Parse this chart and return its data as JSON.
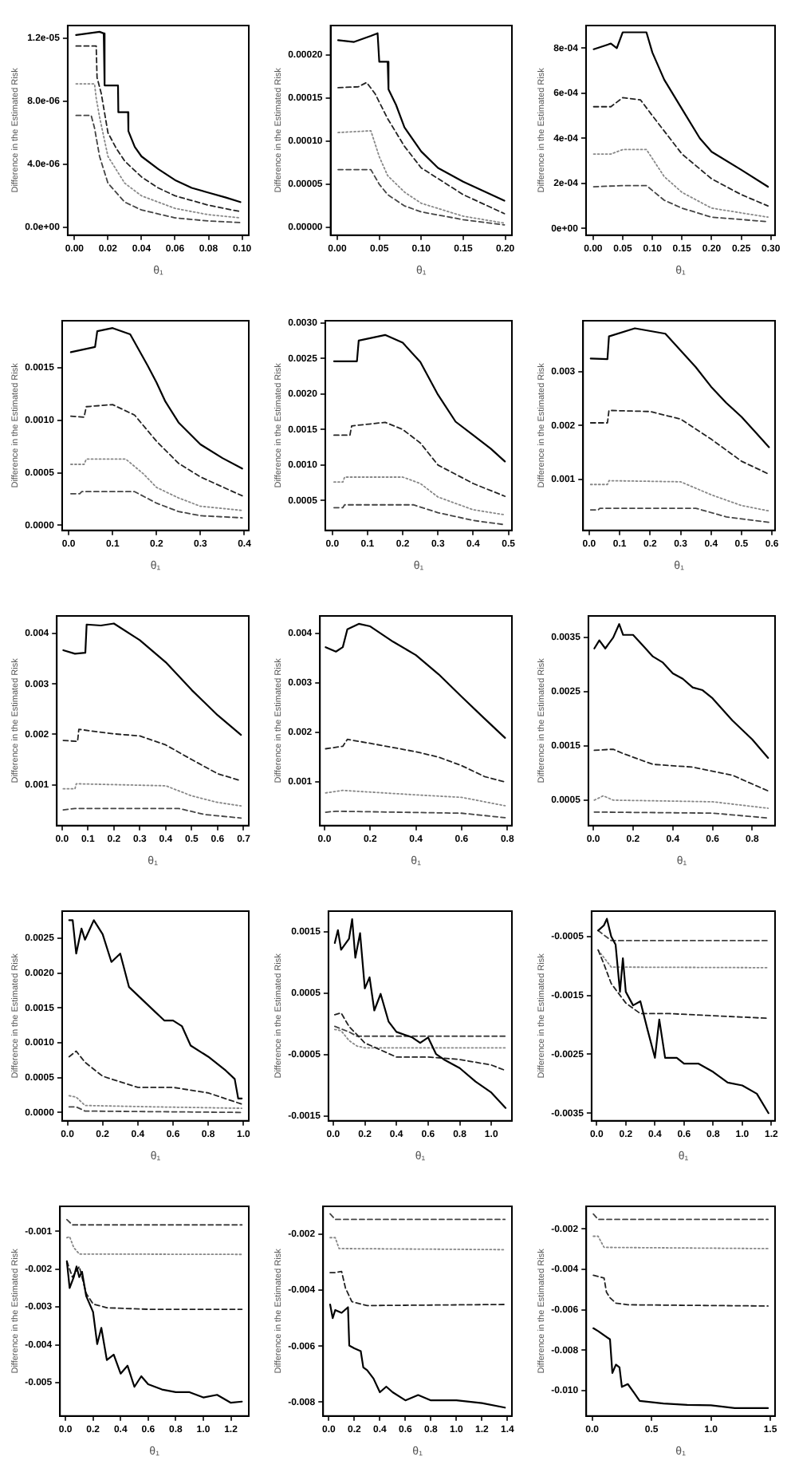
{
  "chart_data": [
    {
      "type": "line",
      "xlabel": "θ₁",
      "ylabel": "Difference in the Estimated Risk",
      "xlim": [
        -0.004,
        0.104
      ],
      "xticks": [
        {
          "value": 0,
          "label": "0.00"
        },
        0.02,
        0.04,
        0.06,
        0.08,
        {
          "value": 0.1,
          "label": "0.10"
        }
      ],
      "ylim": [
        -5e-07,
        1.28e-05
      ],
      "yticks": [
        {
          "value": 0,
          "label": "0.0e+00"
        },
        {
          "value": 4e-06,
          "label": "4.0e-06"
        },
        {
          "value": 8e-06,
          "label": "8.0e-06"
        },
        {
          "value": 1.2e-05,
          "label": "1.2e-05"
        }
      ],
      "series": [
        {
          "color": "#000000",
          "line_style": "solid",
          "x": [
            0.001,
            0.008,
            0.015,
            0.0175,
            0.018,
            0.026,
            0.0262,
            0.032,
            0.0322,
            0.036,
            0.04,
            0.05,
            0.06,
            0.07,
            0.08,
            0.09,
            0.099
          ],
          "values": [
            1.22e-05,
            1.23e-05,
            1.24e-05,
            1.23e-05,
            9e-06,
            9e-06,
            7.3e-06,
            7.3e-06,
            6.1e-06,
            5.1e-06,
            4.5e-06,
            3.7e-06,
            3e-06,
            2.5e-06,
            2.2e-06,
            1.9e-06,
            1.6e-06
          ]
        },
        {
          "color": "#222222",
          "line_style": "dashed",
          "x": [
            0.001,
            0.013,
            0.0135,
            0.016,
            0.02,
            0.025,
            0.03,
            0.04,
            0.05,
            0.06,
            0.08,
            0.099
          ],
          "values": [
            1.15e-05,
            1.15e-05,
            9.5e-06,
            8.5e-06,
            6e-06,
            5e-06,
            4.2e-06,
            3.2e-06,
            2.5e-06,
            2e-06,
            1.4e-06,
            1e-06
          ]
        },
        {
          "color": "#888888",
          "line_style": "dotted",
          "x": [
            0.001,
            0.012,
            0.013,
            0.015,
            0.02,
            0.03,
            0.04,
            0.06,
            0.08,
            0.099
          ],
          "values": [
            9.1e-06,
            9.1e-06,
            8.2e-06,
            7e-06,
            4.5e-06,
            2.8e-06,
            2e-06,
            1.2e-06,
            8e-07,
            6e-07
          ]
        },
        {
          "color": "#444444",
          "line_style": "dashed",
          "x": [
            0.001,
            0.01,
            0.012,
            0.015,
            0.02,
            0.03,
            0.04,
            0.06,
            0.08,
            0.099
          ],
          "values": [
            7.1e-06,
            7.1e-06,
            6.3e-06,
            4.5e-06,
            2.8e-06,
            1.6e-06,
            1.1e-06,
            6e-07,
            4e-07,
            3e-07
          ]
        }
      ]
    },
    {
      "type": "line",
      "xlabel": "θ₁",
      "ylabel": "Difference in the Estimated Risk",
      "xlim": [
        -0.008,
        0.208
      ],
      "xticks": [
        {
          "value": 0,
          "label": "0.00"
        },
        0.05,
        {
          "value": 0.1,
          "label": "0.10"
        },
        0.15,
        {
          "value": 0.2,
          "label": "0.20"
        }
      ],
      "ylim": [
        -9e-06,
        0.000234
      ],
      "yticks": [
        {
          "value": 0,
          "label": "0.00000"
        },
        {
          "value": 5e-05,
          "label": "0.00005"
        },
        {
          "value": 0.0001,
          "label": "0.00010"
        },
        0.00015,
        {
          "value": 0.0002,
          "label": "0.00020"
        }
      ],
      "series": [
        {
          "color": "#000000",
          "line_style": "solid",
          "x": [
            0.001,
            0.02,
            0.04,
            0.048,
            0.05,
            0.06,
            0.061,
            0.07,
            0.08,
            0.1,
            0.12,
            0.15,
            0.199
          ],
          "values": [
            0.000217,
            0.000215,
            0.000222,
            0.000225,
            0.000192,
            0.000192,
            0.00016,
            0.000142,
            0.000116,
            8.8e-05,
            6.9e-05,
            5.3e-05,
            3.1e-05
          ]
        },
        {
          "color": "#222222",
          "line_style": "dashed",
          "x": [
            0.001,
            0.025,
            0.035,
            0.045,
            0.06,
            0.08,
            0.1,
            0.15,
            0.199
          ],
          "values": [
            0.000162,
            0.000163,
            0.000168,
            0.000155,
            0.000126,
            9.4e-05,
            6.9e-05,
            3.8e-05,
            1.6e-05
          ]
        },
        {
          "color": "#888888",
          "line_style": "dotted",
          "x": [
            0.001,
            0.04,
            0.05,
            0.06,
            0.08,
            0.1,
            0.15,
            0.199
          ],
          "values": [
            0.00011,
            0.000112,
            8.2e-05,
            6e-05,
            4.1e-05,
            2.8e-05,
            1.3e-05,
            5e-06
          ]
        },
        {
          "color": "#444444",
          "line_style": "dashed",
          "x": [
            0.001,
            0.04,
            0.05,
            0.06,
            0.08,
            0.1,
            0.15,
            0.199
          ],
          "values": [
            6.7e-05,
            6.7e-05,
            5e-05,
            3.8e-05,
            2.5e-05,
            1.8e-05,
            9e-06,
            3e-06
          ]
        }
      ]
    },
    {
      "type": "line",
      "xlabel": "θ₁",
      "ylabel": "Difference in the Estimated Risk",
      "xlim": [
        -0.012,
        0.307
      ],
      "xticks": [
        {
          "value": 0,
          "label": "0.00"
        },
        0.05,
        {
          "value": 0.1,
          "label": "0.10"
        },
        0.15,
        {
          "value": 0.2,
          "label": "0.20"
        },
        0.25,
        {
          "value": 0.3,
          "label": "0.30"
        }
      ],
      "ylim": [
        -3e-05,
        0.0009
      ],
      "yticks": [
        {
          "value": 0,
          "label": "0e+00"
        },
        {
          "value": 0.0002,
          "label": "2e-04"
        },
        {
          "value": 0.0004,
          "label": "4e-04"
        },
        {
          "value": 0.0006,
          "label": "6e-04"
        },
        {
          "value": 0.0008,
          "label": "8e-04"
        }
      ],
      "series": [
        {
          "color": "#000000",
          "line_style": "solid",
          "x": [
            0.001,
            0.03,
            0.04,
            0.05,
            0.09,
            0.1,
            0.12,
            0.15,
            0.18,
            0.2,
            0.25,
            0.295
          ],
          "values": [
            0.000795,
            0.00082,
            0.0008,
            0.00087,
            0.00087,
            0.00078,
            0.00066,
            0.00053,
            0.0004,
            0.00034,
            0.00026,
            0.000185
          ]
        },
        {
          "color": "#222222",
          "line_style": "dashed",
          "x": [
            0.001,
            0.03,
            0.05,
            0.08,
            0.1,
            0.15,
            0.2,
            0.25,
            0.295
          ],
          "values": [
            0.00054,
            0.00054,
            0.00058,
            0.00057,
            0.0005,
            0.00033,
            0.00022,
            0.00015,
            0.0001
          ]
        },
        {
          "color": "#888888",
          "line_style": "dotted",
          "x": [
            0.001,
            0.03,
            0.05,
            0.09,
            0.12,
            0.15,
            0.2,
            0.295
          ],
          "values": [
            0.00033,
            0.00033,
            0.00035,
            0.00035,
            0.00023,
            0.00016,
            9e-05,
            5e-05
          ]
        },
        {
          "color": "#444444",
          "line_style": "dashed",
          "x": [
            0.001,
            0.05,
            0.09,
            0.12,
            0.15,
            0.2,
            0.295
          ],
          "values": [
            0.000185,
            0.00019,
            0.00019,
            0.000125,
            9e-05,
            5e-05,
            3e-05
          ]
        }
      ]
    },
    {
      "type": "line",
      "xlabel": "θ₁",
      "ylabel": "Difference in the Estimated Risk",
      "xlim": [
        -0.015,
        0.41
      ],
      "xticks": [
        {
          "value": 0,
          "label": "0.0"
        },
        0.1,
        0.2,
        0.3,
        0.4
      ],
      "ylim": [
        -5e-05,
        0.00195
      ],
      "yticks": [
        {
          "value": 0,
          "label": "0.0000"
        },
        0.0005,
        {
          "value": 0.001,
          "label": "0.0010"
        },
        0.0015
      ],
      "series": [
        {
          "color": "#000000",
          "line_style": "solid",
          "x": [
            0.005,
            0.06,
            0.065,
            0.1,
            0.14,
            0.16,
            0.18,
            0.2,
            0.22,
            0.25,
            0.3,
            0.35,
            0.395
          ],
          "values": [
            0.00165,
            0.0017,
            0.00185,
            0.00188,
            0.00182,
            0.00167,
            0.00152,
            0.00136,
            0.00118,
            0.00098,
            0.00077,
            0.00064,
            0.00054
          ]
        },
        {
          "color": "#222222",
          "line_style": "dashed",
          "x": [
            0.005,
            0.035,
            0.04,
            0.1,
            0.15,
            0.2,
            0.25,
            0.3,
            0.395
          ],
          "values": [
            0.00104,
            0.00103,
            0.00113,
            0.00115,
            0.00105,
            0.0008,
            0.00059,
            0.00046,
            0.00028
          ]
        },
        {
          "color": "#888888",
          "line_style": "dotted",
          "x": [
            0.005,
            0.035,
            0.04,
            0.13,
            0.17,
            0.2,
            0.25,
            0.3,
            0.395
          ],
          "values": [
            0.00058,
            0.00058,
            0.00063,
            0.00063,
            0.00049,
            0.00036,
            0.00026,
            0.00018,
            0.00014
          ]
        },
        {
          "color": "#444444",
          "line_style": "dashed",
          "x": [
            0.005,
            0.025,
            0.03,
            0.15,
            0.2,
            0.25,
            0.3,
            0.395
          ],
          "values": [
            0.0003,
            0.0003,
            0.00032,
            0.00032,
            0.00021,
            0.00013,
            9e-05,
            7e-05
          ]
        }
      ]
    },
    {
      "type": "line",
      "xlabel": "θ₁",
      "ylabel": "Difference in the Estimated Risk",
      "xlim": [
        -0.02,
        0.51
      ],
      "xticks": [
        {
          "value": 0,
          "label": "0.0"
        },
        0.1,
        0.2,
        0.3,
        0.4,
        0.5
      ],
      "ylim": [
        8e-05,
        0.00303
      ],
      "yticks": [
        0.0005,
        {
          "value": 0.001,
          "label": "0.0010"
        },
        0.0015,
        {
          "value": 0.002,
          "label": "0.0020"
        },
        0.0025,
        {
          "value": 0.003,
          "label": "0.0030"
        }
      ],
      "series": [
        {
          "color": "#000000",
          "line_style": "solid",
          "x": [
            0.005,
            0.07,
            0.075,
            0.15,
            0.2,
            0.25,
            0.3,
            0.35,
            0.4,
            0.45,
            0.49
          ],
          "values": [
            0.00246,
            0.00246,
            0.00275,
            0.00283,
            0.00272,
            0.00245,
            0.00199,
            0.00161,
            0.00142,
            0.00123,
            0.00105
          ]
        },
        {
          "color": "#222222",
          "line_style": "dashed",
          "x": [
            0.005,
            0.05,
            0.055,
            0.15,
            0.2,
            0.25,
            0.3,
            0.4,
            0.49
          ],
          "values": [
            0.00142,
            0.00142,
            0.00155,
            0.0016,
            0.0015,
            0.00131,
            0.001,
            0.00074,
            0.00056
          ]
        },
        {
          "color": "#888888",
          "line_style": "dotted",
          "x": [
            0.005,
            0.03,
            0.035,
            0.2,
            0.25,
            0.3,
            0.4,
            0.49
          ],
          "values": [
            0.00076,
            0.00076,
            0.00083,
            0.00083,
            0.00074,
            0.00055,
            0.00037,
            0.0003
          ]
        },
        {
          "color": "#444444",
          "line_style": "dashed",
          "x": [
            0.005,
            0.03,
            0.035,
            0.23,
            0.3,
            0.4,
            0.49
          ],
          "values": [
            0.0004,
            0.0004,
            0.00044,
            0.00044,
            0.00033,
            0.00022,
            0.00016
          ]
        }
      ]
    },
    {
      "type": "line",
      "xlabel": "θ₁",
      "ylabel": "Difference in the Estimated Risk",
      "xlim": [
        -0.02,
        0.61
      ],
      "xticks": [
        {
          "value": 0,
          "label": "0.0"
        },
        0.1,
        0.2,
        0.3,
        0.4,
        0.5,
        0.6
      ],
      "ylim": [
        6e-05,
        0.00394
      ],
      "yticks": [
        0.001,
        0.002,
        0.003
      ],
      "series": [
        {
          "color": "#000000",
          "line_style": "solid",
          "x": [
            0.005,
            0.06,
            0.065,
            0.15,
            0.25,
            0.3,
            0.35,
            0.4,
            0.45,
            0.5,
            0.55,
            0.59
          ],
          "values": [
            0.00324,
            0.00323,
            0.00365,
            0.0038,
            0.0037,
            0.00339,
            0.00308,
            0.00272,
            0.00242,
            0.00216,
            0.00185,
            0.0016
          ]
        },
        {
          "color": "#222222",
          "line_style": "dashed",
          "x": [
            0.005,
            0.06,
            0.065,
            0.2,
            0.3,
            0.4,
            0.5,
            0.59
          ],
          "values": [
            0.00205,
            0.00205,
            0.00228,
            0.00226,
            0.00212,
            0.00175,
            0.00134,
            0.0011
          ]
        },
        {
          "color": "#888888",
          "line_style": "dotted",
          "x": [
            0.005,
            0.06,
            0.065,
            0.3,
            0.4,
            0.5,
            0.59
          ],
          "values": [
            0.00091,
            0.00091,
            0.00098,
            0.00096,
            0.00072,
            0.00052,
            0.00042
          ]
        },
        {
          "color": "#444444",
          "line_style": "dashed",
          "x": [
            0.005,
            0.03,
            0.035,
            0.35,
            0.45,
            0.59
          ],
          "values": [
            0.00044,
            0.00044,
            0.00047,
            0.00047,
            0.00031,
            0.00021
          ]
        }
      ]
    },
    {
      "type": "line",
      "xlabel": "θ₁",
      "ylabel": "Difference in the Estimated Risk",
      "xlim": [
        -0.02,
        0.72
      ],
      "xticks": [
        {
          "value": 0,
          "label": "0.0"
        },
        0.1,
        0.2,
        0.3,
        0.4,
        0.5,
        0.6,
        0.7
      ],
      "ylim": [
        0.00019,
        0.00435
      ],
      "yticks": [
        0.001,
        0.002,
        0.003,
        0.004
      ],
      "series": [
        {
          "color": "#000000",
          "line_style": "solid",
          "x": [
            0.005,
            0.05,
            0.09,
            0.095,
            0.15,
            0.2,
            0.3,
            0.4,
            0.5,
            0.6,
            0.69
          ],
          "values": [
            0.00367,
            0.0036,
            0.00362,
            0.00418,
            0.00416,
            0.0042,
            0.00387,
            0.00343,
            0.00288,
            0.00238,
            0.00199
          ]
        },
        {
          "color": "#222222",
          "line_style": "dashed",
          "x": [
            0.005,
            0.06,
            0.065,
            0.2,
            0.3,
            0.4,
            0.5,
            0.6,
            0.69
          ],
          "values": [
            0.00188,
            0.00186,
            0.0021,
            0.00201,
            0.00197,
            0.00179,
            0.0015,
            0.00122,
            0.00108
          ]
        },
        {
          "color": "#888888",
          "line_style": "dotted",
          "x": [
            0.005,
            0.05,
            0.055,
            0.4,
            0.5,
            0.6,
            0.69
          ],
          "values": [
            0.00092,
            0.00092,
            0.00102,
            0.00098,
            0.00078,
            0.00065,
            0.00058
          ]
        },
        {
          "color": "#444444",
          "line_style": "dashed",
          "x": [
            0.005,
            0.05,
            0.45,
            0.55,
            0.69
          ],
          "values": [
            0.0005,
            0.00053,
            0.00053,
            0.00041,
            0.00034
          ]
        }
      ]
    },
    {
      "type": "line",
      "xlabel": "θ₁",
      "ylabel": "Difference in the Estimated Risk",
      "xlim": [
        -0.02,
        0.82
      ],
      "xticks": [
        {
          "value": 0,
          "label": "0.0"
        },
        0.2,
        0.4,
        0.6,
        0.8
      ],
      "ylim": [
        0.00012,
        0.00435
      ],
      "yticks": [
        0.001,
        0.002,
        0.003,
        0.004
      ],
      "series": [
        {
          "color": "#000000",
          "line_style": "solid",
          "x": [
            0.005,
            0.05,
            0.08,
            0.1,
            0.15,
            0.2,
            0.3,
            0.4,
            0.5,
            0.6,
            0.7,
            0.79
          ],
          "values": [
            0.00372,
            0.00363,
            0.00372,
            0.00408,
            0.00419,
            0.00414,
            0.00383,
            0.00356,
            0.00317,
            0.00272,
            0.00228,
            0.00189
          ]
        },
        {
          "color": "#222222",
          "line_style": "dashed",
          "x": [
            0.005,
            0.08,
            0.1,
            0.2,
            0.4,
            0.5,
            0.6,
            0.7,
            0.79
          ],
          "values": [
            0.00167,
            0.00172,
            0.00186,
            0.00178,
            0.00161,
            0.0015,
            0.00133,
            0.00111,
            0.001
          ]
        },
        {
          "color": "#888888",
          "line_style": "dotted",
          "x": [
            0.005,
            0.08,
            0.4,
            0.6,
            0.79
          ],
          "values": [
            0.00078,
            0.00083,
            0.00074,
            0.00069,
            0.00052
          ]
        },
        {
          "color": "#444444",
          "line_style": "dashed",
          "x": [
            0.005,
            0.05,
            0.6,
            0.79
          ],
          "values": [
            0.00039,
            0.00041,
            0.00037,
            0.00028
          ]
        }
      ]
    },
    {
      "type": "line",
      "xlabel": "θ₁",
      "ylabel": "Difference in the Estimated Risk",
      "xlim": [
        -0.025,
        0.915
      ],
      "xticks": [
        {
          "value": 0,
          "label": "0.0"
        },
        0.2,
        0.4,
        0.6,
        0.8
      ],
      "ylim": [
        3e-05,
        0.0039
      ],
      "yticks": [
        0.0005,
        0.0015,
        0.0025,
        0.0035
      ],
      "series": [
        {
          "color": "#000000",
          "line_style": "solid",
          "x": [
            0.005,
            0.03,
            0.06,
            0.1,
            0.13,
            0.15,
            0.2,
            0.25,
            0.3,
            0.35,
            0.4,
            0.45,
            0.5,
            0.55,
            0.6,
            0.7,
            0.8,
            0.88
          ],
          "values": [
            0.0033,
            0.00345,
            0.0033,
            0.0035,
            0.00375,
            0.00355,
            0.00355,
            0.00335,
            0.00315,
            0.00304,
            0.00284,
            0.00274,
            0.00258,
            0.00253,
            0.00238,
            0.00197,
            0.00162,
            0.00128
          ]
        },
        {
          "color": "#222222",
          "line_style": "dashed",
          "x": [
            0.005,
            0.1,
            0.15,
            0.3,
            0.5,
            0.7,
            0.88
          ],
          "values": [
            0.00142,
            0.00144,
            0.00136,
            0.00116,
            0.00111,
            0.00096,
            0.00067
          ]
        },
        {
          "color": "#888888",
          "line_style": "dotted",
          "x": [
            0.005,
            0.05,
            0.1,
            0.6,
            0.88
          ],
          "values": [
            0.0005,
            0.00058,
            0.0005,
            0.00047,
            0.00035
          ]
        },
        {
          "color": "#444444",
          "line_style": "dashed",
          "x": [
            0.005,
            0.6,
            0.88
          ],
          "values": [
            0.00028,
            0.00026,
            0.00017
          ]
        }
      ]
    },
    {
      "type": "line",
      "xlabel": "θ₁",
      "ylabel": "Difference in the Estimated Risk",
      "xlim": [
        -0.03,
        1.03
      ],
      "xticks": [
        {
          "value": 0,
          "label": "0.0"
        },
        0.2,
        0.4,
        0.6,
        0.8,
        {
          "value": 1,
          "label": "1.0"
        }
      ],
      "ylim": [
        -0.00012,
        0.00289
      ],
      "yticks": [
        {
          "value": 0,
          "label": "0.0000"
        },
        0.0005,
        {
          "value": 0.001,
          "label": "0.0010"
        },
        0.0015,
        {
          "value": 0.002,
          "label": "0.0020"
        },
        0.0025
      ],
      "series": [
        {
          "color": "#000000",
          "line_style": "solid",
          "x": [
            0.01,
            0.03,
            0.05,
            0.08,
            0.1,
            0.15,
            0.2,
            0.25,
            0.3,
            0.35,
            0.4,
            0.45,
            0.5,
            0.55,
            0.6,
            0.65,
            0.7,
            0.8,
            0.9,
            0.95,
            0.97,
            0.99
          ],
          "values": [
            0.00276,
            0.00276,
            0.00228,
            0.00264,
            0.00248,
            0.00276,
            0.00256,
            0.00216,
            0.00228,
            0.0018,
            0.00168,
            0.00156,
            0.00144,
            0.00132,
            0.00132,
            0.00124,
            0.00096,
            0.0008,
            0.0006,
            0.00048,
            0.0002,
            0.0002
          ]
        },
        {
          "color": "#222222",
          "line_style": "dashed",
          "x": [
            0.01,
            0.05,
            0.1,
            0.2,
            0.4,
            0.6,
            0.8,
            0.99
          ],
          "values": [
            0.0008,
            0.00088,
            0.00072,
            0.00052,
            0.00036,
            0.00036,
            0.00028,
            0.00012
          ]
        },
        {
          "color": "#888888",
          "line_style": "dotted",
          "x": [
            0.01,
            0.05,
            0.1,
            0.5,
            0.99
          ],
          "values": [
            0.00024,
            0.00022,
            0.0001,
            8e-05,
            6e-05
          ]
        },
        {
          "color": "#444444",
          "line_style": "dashed",
          "x": [
            0.01,
            0.05,
            0.1,
            0.99
          ],
          "values": [
            8e-05,
            8e-05,
            2e-05,
            0
          ]
        }
      ]
    },
    {
      "type": "line",
      "xlabel": "θ₁",
      "ylabel": "Difference in the Estimated Risk",
      "xlim": [
        -0.03,
        1.13
      ],
      "xticks": [
        {
          "value": 0,
          "label": "0.0"
        },
        0.2,
        0.4,
        0.6,
        0.8,
        {
          "value": 1,
          "label": "1.0"
        }
      ],
      "ylim": [
        -0.00158,
        0.00184
      ],
      "yticks": [
        -0.0015,
        -0.0005,
        0.0005,
        0.0015
      ],
      "series": [
        {
          "color": "#000000",
          "line_style": "solid",
          "x": [
            0.01,
            0.03,
            0.05,
            0.1,
            0.12,
            0.14,
            0.17,
            0.2,
            0.23,
            0.26,
            0.3,
            0.35,
            0.4,
            0.5,
            0.55,
            0.6,
            0.65,
            0.7,
            0.8,
            0.9,
            1.0,
            1.09
          ],
          "values": [
            0.00132,
            0.00153,
            0.00121,
            0.00139,
            0.00171,
            0.00108,
            0.00148,
            0.00058,
            0.00076,
            0.00022,
            0.00049,
            4e-05,
            -0.00013,
            -0.00022,
            -0.00031,
            -0.00022,
            -0.00049,
            -0.00058,
            -0.00072,
            -0.00094,
            -0.00112,
            -0.00137
          ]
        },
        {
          "color": "#222222",
          "line_style": "dashed",
          "x": [
            0.01,
            0.05,
            0.1,
            0.2,
            0.4,
            0.6,
            0.8,
            1.0,
            1.09
          ],
          "values": [
            0.00015,
            0.00018,
            -4e-05,
            -0.00031,
            -0.00054,
            -0.00054,
            -0.00058,
            -0.00067,
            -0.00076
          ]
        },
        {
          "color": "#888888",
          "line_style": "dotted",
          "x": [
            0.01,
            0.05,
            0.1,
            0.15,
            0.2,
            1.09
          ],
          "values": [
            -9e-05,
            -0.00011,
            -0.00027,
            -0.00036,
            -0.00039,
            -0.00039
          ]
        },
        {
          "color": "#444444",
          "line_style": "dashed",
          "x": [
            0.01,
            0.1,
            0.15,
            1.09
          ],
          "values": [
            -4e-05,
            -0.00013,
            -0.0002,
            -0.0002
          ]
        }
      ]
    },
    {
      "type": "line",
      "xlabel": "θ₁",
      "ylabel": "Difference in the Estimated Risk",
      "xlim": [
        -0.035,
        1.225
      ],
      "xticks": [
        {
          "value": 0,
          "label": "0.0"
        },
        0.2,
        0.4,
        0.6,
        0.8,
        {
          "value": 1,
          "label": "1.0"
        },
        1.2
      ],
      "ylim": [
        -0.00363,
        -7e-05
      ],
      "yticks": [
        -0.0035,
        -0.0025,
        -0.0015,
        -0.0005
      ],
      "series": [
        {
          "color": "#000000",
          "line_style": "solid",
          "x": [
            0.01,
            0.05,
            0.07,
            0.1,
            0.13,
            0.16,
            0.18,
            0.2,
            0.25,
            0.3,
            0.35,
            0.4,
            0.43,
            0.47,
            0.55,
            0.6,
            0.7,
            0.8,
            0.9,
            1.0,
            1.1,
            1.18
          ],
          "values": [
            -0.0004,
            -0.00031,
            -0.0002,
            -0.0005,
            -0.00064,
            -0.00144,
            -0.00087,
            -0.00144,
            -0.00167,
            -0.0016,
            -0.00209,
            -0.00256,
            -0.00191,
            -0.00256,
            -0.00256,
            -0.00266,
            -0.00266,
            -0.0028,
            -0.00298,
            -0.00303,
            -0.00317,
            -0.0035
          ]
        },
        {
          "color": "#222222",
          "line_style": "dashed",
          "x": [
            0.01,
            0.05,
            0.1,
            0.2,
            0.3,
            0.5,
            1.18
          ],
          "values": [
            -0.00073,
            -0.00097,
            -0.0013,
            -0.00163,
            -0.00181,
            -0.00181,
            -0.00189
          ]
        },
        {
          "color": "#888888",
          "line_style": "dotted",
          "x": [
            0.01,
            0.1,
            1.18
          ],
          "values": [
            -0.00073,
            -0.00102,
            -0.00103
          ]
        },
        {
          "color": "#444444",
          "line_style": "dashed",
          "x": [
            0.01,
            0.1,
            1.18
          ],
          "values": [
            -0.0004,
            -0.00057,
            -0.00057
          ]
        }
      ]
    },
    {
      "type": "line",
      "xlabel": "θ₁",
      "ylabel": "Difference in the Estimated Risk",
      "xlim": [
        -0.04,
        1.33
      ],
      "xticks": [
        {
          "value": 0,
          "label": "0.0"
        },
        0.2,
        0.4,
        0.6,
        0.8,
        {
          "value": 1,
          "label": "1.0"
        },
        1.2
      ],
      "ylim": [
        -0.00588,
        -0.00034
      ],
      "yticks": [
        -0.005,
        -0.004,
        -0.003,
        -0.002,
        -0.001
      ],
      "series": [
        {
          "color": "#000000",
          "line_style": "solid",
          "x": [
            0.01,
            0.03,
            0.06,
            0.08,
            0.1,
            0.12,
            0.15,
            0.2,
            0.23,
            0.26,
            0.3,
            0.35,
            0.4,
            0.45,
            0.5,
            0.55,
            0.6,
            0.7,
            0.8,
            0.9,
            1.0,
            1.1,
            1.2,
            1.28
          ],
          "values": [
            -0.00179,
            -0.0025,
            -0.00221,
            -0.00193,
            -0.00221,
            -0.00207,
            -0.00271,
            -0.00313,
            -0.00398,
            -0.00355,
            -0.0044,
            -0.00426,
            -0.00476,
            -0.00455,
            -0.00511,
            -0.00483,
            -0.00504,
            -0.00518,
            -0.00525,
            -0.00525,
            -0.00539,
            -0.00532,
            -0.00553,
            -0.0055
          ]
        },
        {
          "color": "#222222",
          "line_style": "dashed",
          "x": [
            0.01,
            0.05,
            0.1,
            0.15,
            0.2,
            0.3,
            0.6,
            1.28
          ],
          "values": [
            -0.00179,
            -0.00221,
            -0.00193,
            -0.00264,
            -0.00292,
            -0.00302,
            -0.00306,
            -0.00306
          ]
        },
        {
          "color": "#888888",
          "line_style": "dotted",
          "x": [
            0.01,
            0.03,
            0.06,
            0.1,
            1.28
          ],
          "values": [
            -0.00117,
            -0.00114,
            -0.00143,
            -0.0016,
            -0.00161
          ]
        },
        {
          "color": "#444444",
          "line_style": "dashed",
          "x": [
            0.01,
            0.05,
            1.28
          ],
          "values": [
            -0.00069,
            -0.00083,
            -0.00083
          ]
        }
      ]
    },
    {
      "type": "line",
      "xlabel": "θ₁",
      "ylabel": "Difference in the Estimated Risk",
      "xlim": [
        -0.045,
        1.435
      ],
      "xticks": [
        {
          "value": 0,
          "label": "0.0"
        },
        0.2,
        0.4,
        0.6,
        0.8,
        {
          "value": 1,
          "label": "1.0"
        },
        1.2,
        1.4
      ],
      "ylim": [
        -0.0085,
        -0.001
      ],
      "yticks": [
        -0.008,
        -0.006,
        -0.004,
        -0.002
      ],
      "series": [
        {
          "color": "#000000",
          "line_style": "solid",
          "x": [
            0.01,
            0.03,
            0.05,
            0.1,
            0.15,
            0.16,
            0.2,
            0.25,
            0.27,
            0.3,
            0.35,
            0.4,
            0.45,
            0.5,
            0.6,
            0.7,
            0.8,
            1.0,
            1.2,
            1.38
          ],
          "values": [
            -0.00451,
            -0.005,
            -0.00471,
            -0.00481,
            -0.00461,
            -0.00598,
            -0.00608,
            -0.00618,
            -0.00676,
            -0.00686,
            -0.00716,
            -0.00765,
            -0.00745,
            -0.00765,
            -0.00794,
            -0.00775,
            -0.00794,
            -0.00794,
            -0.00804,
            -0.0082
          ]
        },
        {
          "color": "#222222",
          "line_style": "dashed",
          "x": [
            0.01,
            0.05,
            0.1,
            0.13,
            0.18,
            0.3,
            1.38
          ],
          "values": [
            -0.00337,
            -0.00337,
            -0.00333,
            -0.00392,
            -0.00441,
            -0.00455,
            -0.00451
          ]
        },
        {
          "color": "#888888",
          "line_style": "dotted",
          "x": [
            0.01,
            0.05,
            0.08,
            1.38
          ],
          "values": [
            -0.00212,
            -0.00212,
            -0.00251,
            -0.00255
          ]
        },
        {
          "color": "#444444",
          "line_style": "dashed",
          "x": [
            0.01,
            0.05,
            1.38
          ],
          "values": [
            -0.00127,
            -0.00147,
            -0.00147
          ]
        }
      ]
    },
    {
      "type": "line",
      "xlabel": "θ₁",
      "ylabel": "Difference in the Estimated Risk",
      "xlim": [
        -0.05,
        1.54
      ],
      "xticks": [
        {
          "value": 0,
          "label": "0.0"
        },
        0.5,
        {
          "value": 1,
          "label": "1.0"
        },
        1.5
      ],
      "ylim": [
        -0.01125,
        -0.00088
      ],
      "yticks": [
        {
          "value": -0.01,
          "label": "-0.010"
        },
        -0.008,
        -0.006,
        -0.004,
        -0.002
      ],
      "series": [
        {
          "color": "#000000",
          "line_style": "solid",
          "x": [
            0.01,
            0.05,
            0.15,
            0.17,
            0.2,
            0.23,
            0.25,
            0.3,
            0.35,
            0.4,
            0.6,
            0.8,
            1.0,
            1.2,
            1.48
          ],
          "values": [
            -0.00691,
            -0.00705,
            -0.00746,
            -0.00912,
            -0.00871,
            -0.00885,
            -0.00981,
            -0.00967,
            -0.01008,
            -0.0105,
            -0.01063,
            -0.0107,
            -0.01072,
            -0.01086,
            -0.01086
          ]
        },
        {
          "color": "#222222",
          "line_style": "dashed",
          "x": [
            0.01,
            0.1,
            0.12,
            0.15,
            0.2,
            0.3,
            1.48
          ],
          "values": [
            -0.00429,
            -0.00443,
            -0.00512,
            -0.0054,
            -0.00567,
            -0.00575,
            -0.00581
          ]
        },
        {
          "color": "#888888",
          "line_style": "dotted",
          "x": [
            0.01,
            0.05,
            0.1,
            1.48
          ],
          "values": [
            -0.00236,
            -0.00236,
            -0.00291,
            -0.00297
          ]
        },
        {
          "color": "#444444",
          "line_style": "dashed",
          "x": [
            0.01,
            0.05,
            1.48
          ],
          "values": [
            -0.00126,
            -0.00153,
            -0.00153
          ]
        }
      ]
    }
  ]
}
